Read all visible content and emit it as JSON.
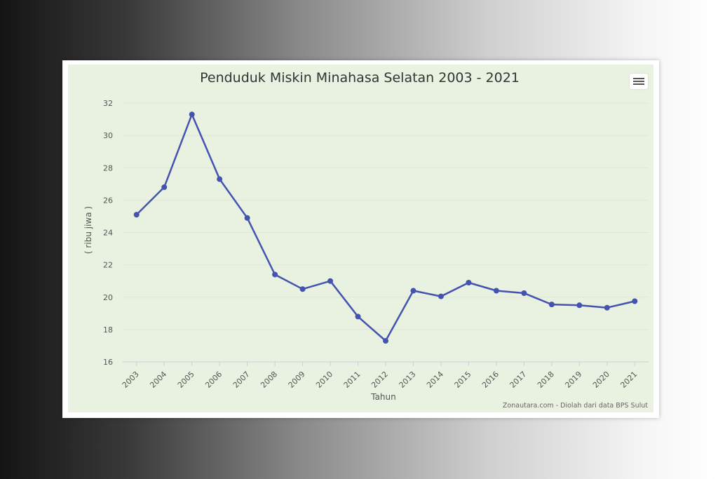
{
  "chart_data": {
    "type": "line",
    "title": "Penduduk Miskin Minahasa Selatan 2003 - 2021",
    "xlabel": "Tahun",
    "ylabel": "( ribu jiwa )",
    "credits": "Zonautara.com - Diolah dari data BPS Sulut",
    "categories": [
      "2003",
      "2004",
      "2005",
      "2006",
      "2007",
      "2008",
      "2009",
      "2010",
      "2011",
      "2012",
      "2013",
      "2014",
      "2015",
      "2016",
      "2017",
      "2018",
      "2019",
      "2020",
      "2021"
    ],
    "series": [
      {
        "values": [
          25.1,
          26.8,
          31.3,
          27.3,
          24.9,
          21.4,
          20.5,
          21.0,
          18.8,
          17.3,
          20.4,
          20.05,
          20.9,
          20.4,
          20.25,
          19.55,
          19.5,
          19.35,
          19.75
        ]
      }
    ],
    "yticks": [
      16,
      18,
      20,
      22,
      24,
      26,
      28,
      30,
      32
    ],
    "ylim": [
      16,
      32
    ],
    "grid": true,
    "colors": {
      "line": "#4553b0",
      "background": "#e9f1e1",
      "grid": "#dfe6d8"
    },
    "menu_icon": "hamburger-menu-icon"
  }
}
